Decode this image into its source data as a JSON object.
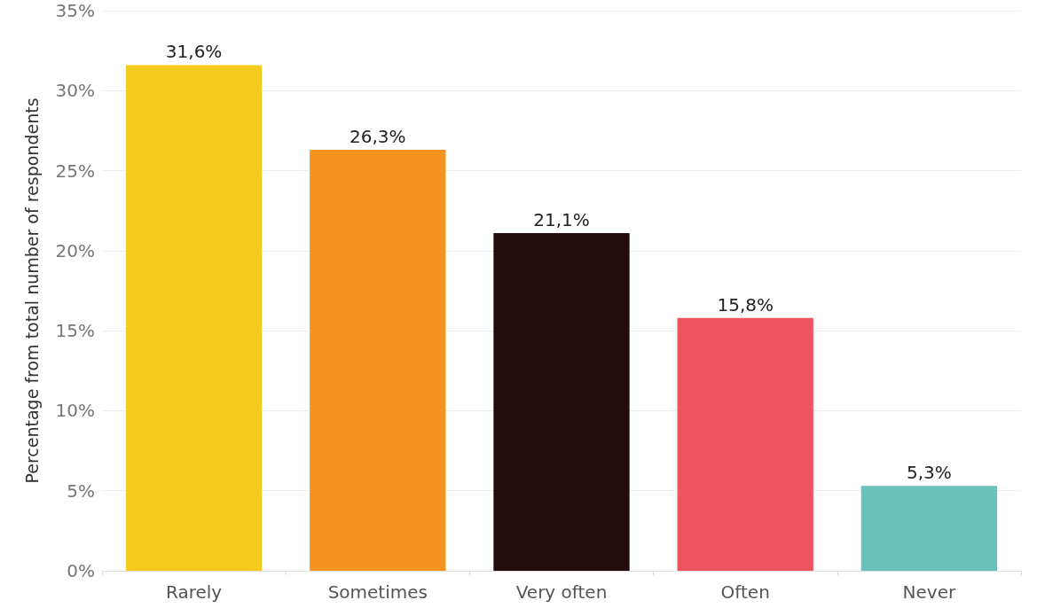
{
  "chart_data": {
    "type": "bar",
    "ylabel": "Percentage from total number of respondents",
    "categories": [
      "Rarely",
      "Sometimes",
      "Very often",
      "Often",
      "Never"
    ],
    "values": [
      31.6,
      26.3,
      21.1,
      15.8,
      5.3
    ],
    "value_labels": [
      "31,6%",
      "26,3%",
      "21,1%",
      "15,8%",
      "5,3%"
    ],
    "colors": [
      "#f5cb1f",
      "#f5931f",
      "#240c0d",
      "#ef5461",
      "#69c1bb"
    ],
    "ylim": [
      0,
      35
    ],
    "yticks": [
      {
        "value": 0,
        "label": "0%"
      },
      {
        "value": 5,
        "label": "5%"
      },
      {
        "value": 10,
        "label": "10%"
      },
      {
        "value": 15,
        "label": "15%"
      },
      {
        "value": 20,
        "label": "20%"
      },
      {
        "value": 25,
        "label": "25%"
      },
      {
        "value": 30,
        "label": "30%"
      },
      {
        "value": 35,
        "label": "35%"
      }
    ],
    "grid": "y"
  }
}
